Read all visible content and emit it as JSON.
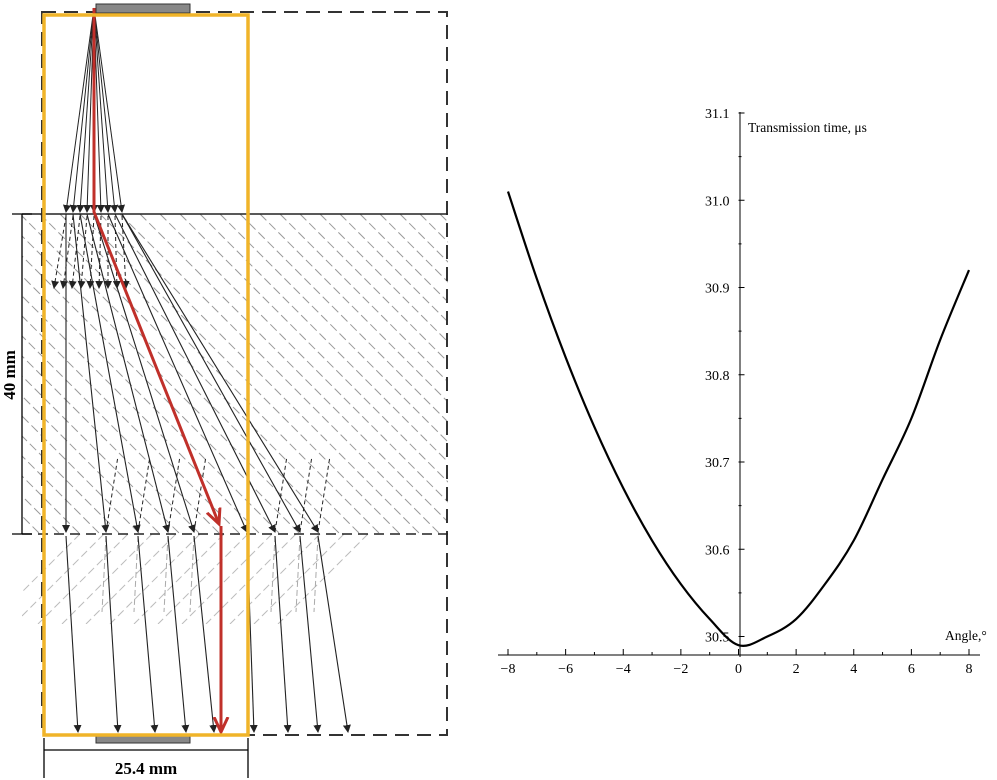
{
  "ray_diagram": {
    "height_dimension": "40 mm",
    "width_dimension": "25.4 mm",
    "highlight_color": "#c0302a",
    "frame_color": "#f0b429"
  },
  "chart_data": {
    "type": "line",
    "title": "",
    "xlabel": "Angle,°",
    "ylabel": "Transmission time, μs",
    "xlim": [
      -8,
      8
    ],
    "ylim": [
      30.5,
      31.1
    ],
    "x_origin_tick_label": "0",
    "xticks": [
      -8,
      -6,
      -4,
      -2,
      0,
      2,
      4,
      6,
      8
    ],
    "xtick_labels": [
      "−8",
      "−6",
      "−4",
      "−2",
      "0",
      "2",
      "4",
      "6",
      "8"
    ],
    "yticks": [
      30.5,
      30.6,
      30.7,
      30.8,
      30.9,
      31.0,
      31.1
    ],
    "ytick_labels": [
      "30.5",
      "30.6",
      "30.7",
      "30.8",
      "30.9",
      "31.0",
      "31.1"
    ],
    "grid": false,
    "series": [
      {
        "x": [
          -8,
          -7,
          -6,
          -5,
          -4,
          -3,
          -2,
          -1,
          0,
          1,
          2,
          3,
          4,
          5,
          6,
          7,
          8
        ],
        "y": [
          31.01,
          30.91,
          30.82,
          30.74,
          30.67,
          30.61,
          30.56,
          30.52,
          30.49,
          30.5,
          30.52,
          30.56,
          30.61,
          30.68,
          30.75,
          30.84,
          30.92
        ]
      }
    ]
  }
}
